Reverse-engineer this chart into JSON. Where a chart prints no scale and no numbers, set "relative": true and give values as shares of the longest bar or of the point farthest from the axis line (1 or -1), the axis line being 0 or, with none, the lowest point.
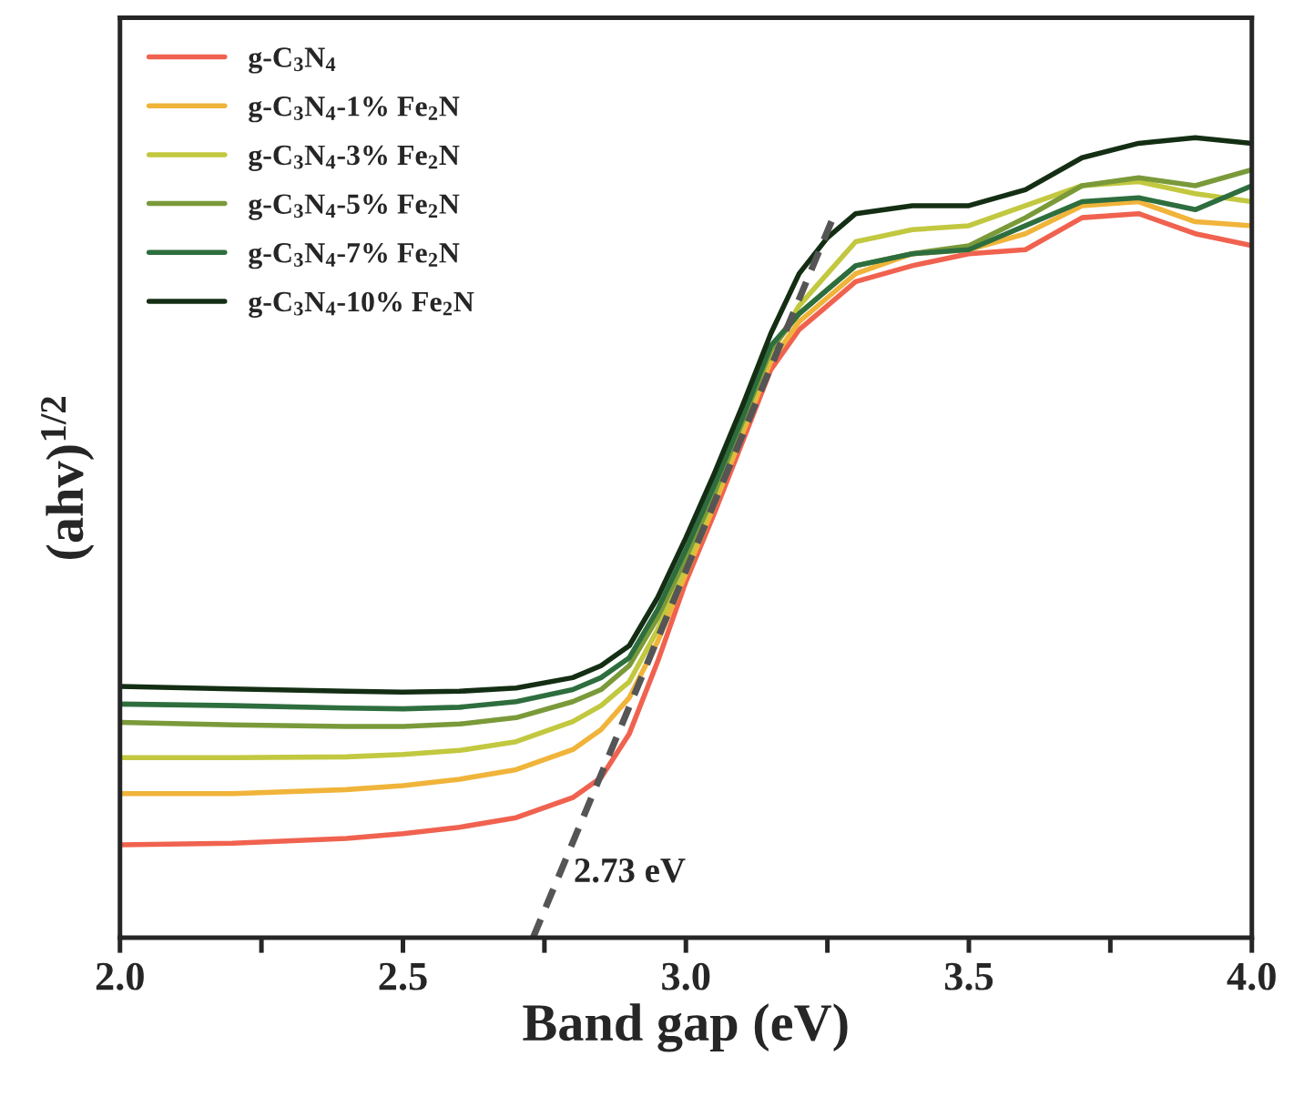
{
  "chart_data": {
    "type": "line",
    "xlabel": "Band gap (eV)",
    "ylabel": "(ahv)$^{1/2}$",
    "relative": true,
    "legend": "top left",
    "line_style": "solid",
    "marker": "none",
    "grid": false,
    "xlim": [
      2.0,
      4.0
    ],
    "xticks": [
      {
        "value": 2.0,
        "label": "2.0"
      },
      {
        "value": 2.25,
        "label": null
      },
      {
        "value": 2.5,
        "label": "2.5"
      },
      {
        "value": 2.75,
        "label": null
      },
      {
        "value": 3.0,
        "label": "3.0"
      },
      {
        "value": 3.25,
        "label": null
      },
      {
        "value": 3.5,
        "label": "3.5"
      },
      {
        "value": 3.75,
        "label": null
      },
      {
        "value": 4.0,
        "label": "4.0"
      }
    ],
    "tick_labels": "x",
    "x": [
      2.0,
      2.2,
      2.4,
      2.5,
      2.6,
      2.7,
      2.8,
      2.85,
      2.9,
      2.95,
      3.0,
      3.05,
      3.1,
      3.15,
      3.2,
      3.25,
      3.3,
      3.4,
      3.5,
      3.6,
      3.7,
      3.8,
      3.9,
      4.0
    ],
    "series": [
      {
        "name": "g-C$_{3}$N$_{4}$",
        "color": "#f0624f",
        "values": [
          0.116,
          0.118,
          0.124,
          0.13,
          0.138,
          0.15,
          0.175,
          0.2,
          0.255,
          0.345,
          0.445,
          0.53,
          0.62,
          0.71,
          0.76,
          0.79,
          0.82,
          0.84,
          0.855,
          0.86,
          0.9,
          0.905,
          0.88,
          0.865
        ]
      },
      {
        "name": "g-C$_{3}$N$_{4}$-1% Fe$_{2}$N",
        "color": "#f0b43a",
        "values": [
          0.18,
          0.18,
          0.185,
          0.19,
          0.198,
          0.21,
          0.235,
          0.26,
          0.3,
          0.37,
          0.455,
          0.54,
          0.63,
          0.72,
          0.77,
          0.8,
          0.83,
          0.855,
          0.86,
          0.88,
          0.915,
          0.92,
          0.895,
          0.89
        ]
      },
      {
        "name": "g-C$_{3}$N$_{4}$-3% Fe$_{2}$N",
        "color": "#c2c83f",
        "values": [
          0.225,
          0.225,
          0.226,
          0.229,
          0.234,
          0.245,
          0.27,
          0.29,
          0.32,
          0.385,
          0.465,
          0.55,
          0.64,
          0.73,
          0.79,
          0.83,
          0.87,
          0.885,
          0.89,
          0.915,
          0.94,
          0.945,
          0.93,
          0.92
        ]
      },
      {
        "name": "g-C$_{3}$N$_{4}$-5% Fe$_{2}$N",
        "color": "#7a9a3a",
        "values": [
          0.269,
          0.266,
          0.264,
          0.264,
          0.267,
          0.275,
          0.295,
          0.31,
          0.34,
          0.4,
          0.475,
          0.555,
          0.645,
          0.735,
          0.78,
          0.81,
          0.84,
          0.855,
          0.865,
          0.9,
          0.94,
          0.95,
          0.94,
          0.96
        ]
      },
      {
        "name": "g-C$_{3}$N$_{4}$-7% Fe$_{2}$N",
        "color": "#2e6e3e",
        "values": [
          0.292,
          0.29,
          0.287,
          0.286,
          0.288,
          0.295,
          0.31,
          0.325,
          0.35,
          0.41,
          0.485,
          0.565,
          0.65,
          0.74,
          0.78,
          0.81,
          0.84,
          0.855,
          0.86,
          0.89,
          0.92,
          0.925,
          0.91,
          0.94
        ]
      },
      {
        "name": "g-C$_{3}$N$_{4}$-10% Fe$_{2}$N",
        "color": "#142e14",
        "values": [
          0.314,
          0.311,
          0.308,
          0.307,
          0.308,
          0.312,
          0.325,
          0.34,
          0.365,
          0.425,
          0.5,
          0.58,
          0.665,
          0.755,
          0.83,
          0.875,
          0.905,
          0.915,
          0.915,
          0.935,
          0.975,
          0.993,
          1.0,
          0.993
        ]
      },
      {
        "type": "line",
        "color": "#555555",
        "line_style": "dashed",
        "x": [
          2.73,
          3.26
        ],
        "values": [
          0,
          0.9
        ]
      }
    ],
    "annotations": [
      {
        "text": "2.73 eV",
        "x": 2.73,
        "y": 0
      }
    ]
  }
}
